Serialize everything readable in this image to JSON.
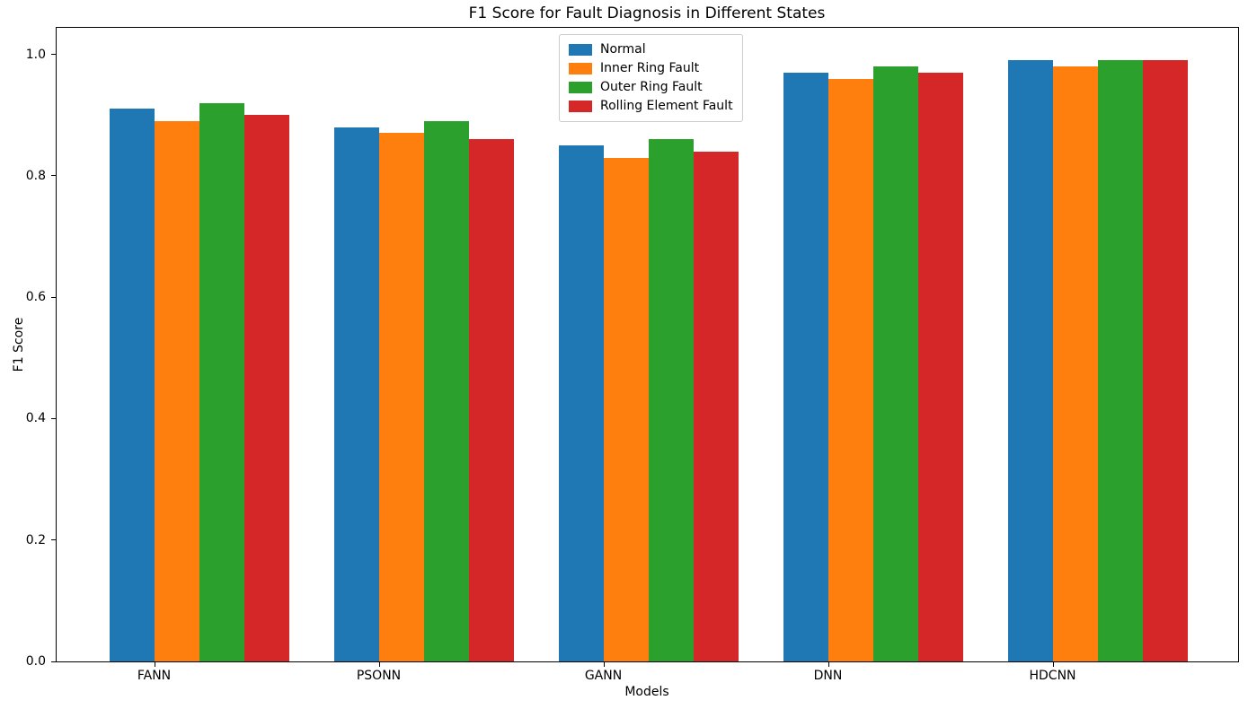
{
  "chart_data": {
    "type": "bar",
    "title": "F1 Score for Fault Diagnosis in Different States",
    "xlabel": "Models",
    "ylabel": "F1 Score",
    "categories": [
      "FANN",
      "PSONN",
      "GANN",
      "DNN",
      "HDCNN"
    ],
    "series": [
      {
        "name": "Normal",
        "color": "#1f77b4",
        "values": [
          0.91,
          0.88,
          0.85,
          0.97,
          0.99
        ]
      },
      {
        "name": "Inner Ring Fault",
        "color": "#ff7f0e",
        "values": [
          0.89,
          0.87,
          0.83,
          0.96,
          0.98
        ]
      },
      {
        "name": "Outer Ring Fault",
        "color": "#2ca02c",
        "values": [
          0.92,
          0.89,
          0.86,
          0.98,
          0.99
        ]
      },
      {
        "name": "Rolling Element Fault",
        "color": "#d62728",
        "values": [
          0.9,
          0.86,
          0.84,
          0.97,
          0.99
        ]
      }
    ],
    "yticks": [
      0.0,
      0.2,
      0.4,
      0.6,
      0.8,
      1.0
    ],
    "ytick_labels": [
      "0.0",
      "0.2",
      "0.4",
      "0.6",
      "0.8",
      "1.0"
    ],
    "xtick_labels": [
      "FANN",
      "PSONN",
      "GANN",
      "DNN",
      "HDCNN"
    ],
    "ylim": [
      0,
      1.04
    ],
    "grid": false,
    "background": "#ffffff",
    "legend": {
      "position": "upper center",
      "entries": [
        "Normal",
        "Inner Ring Fault",
        "Outer Ring Fault",
        "Rolling Element Fault"
      ]
    }
  }
}
